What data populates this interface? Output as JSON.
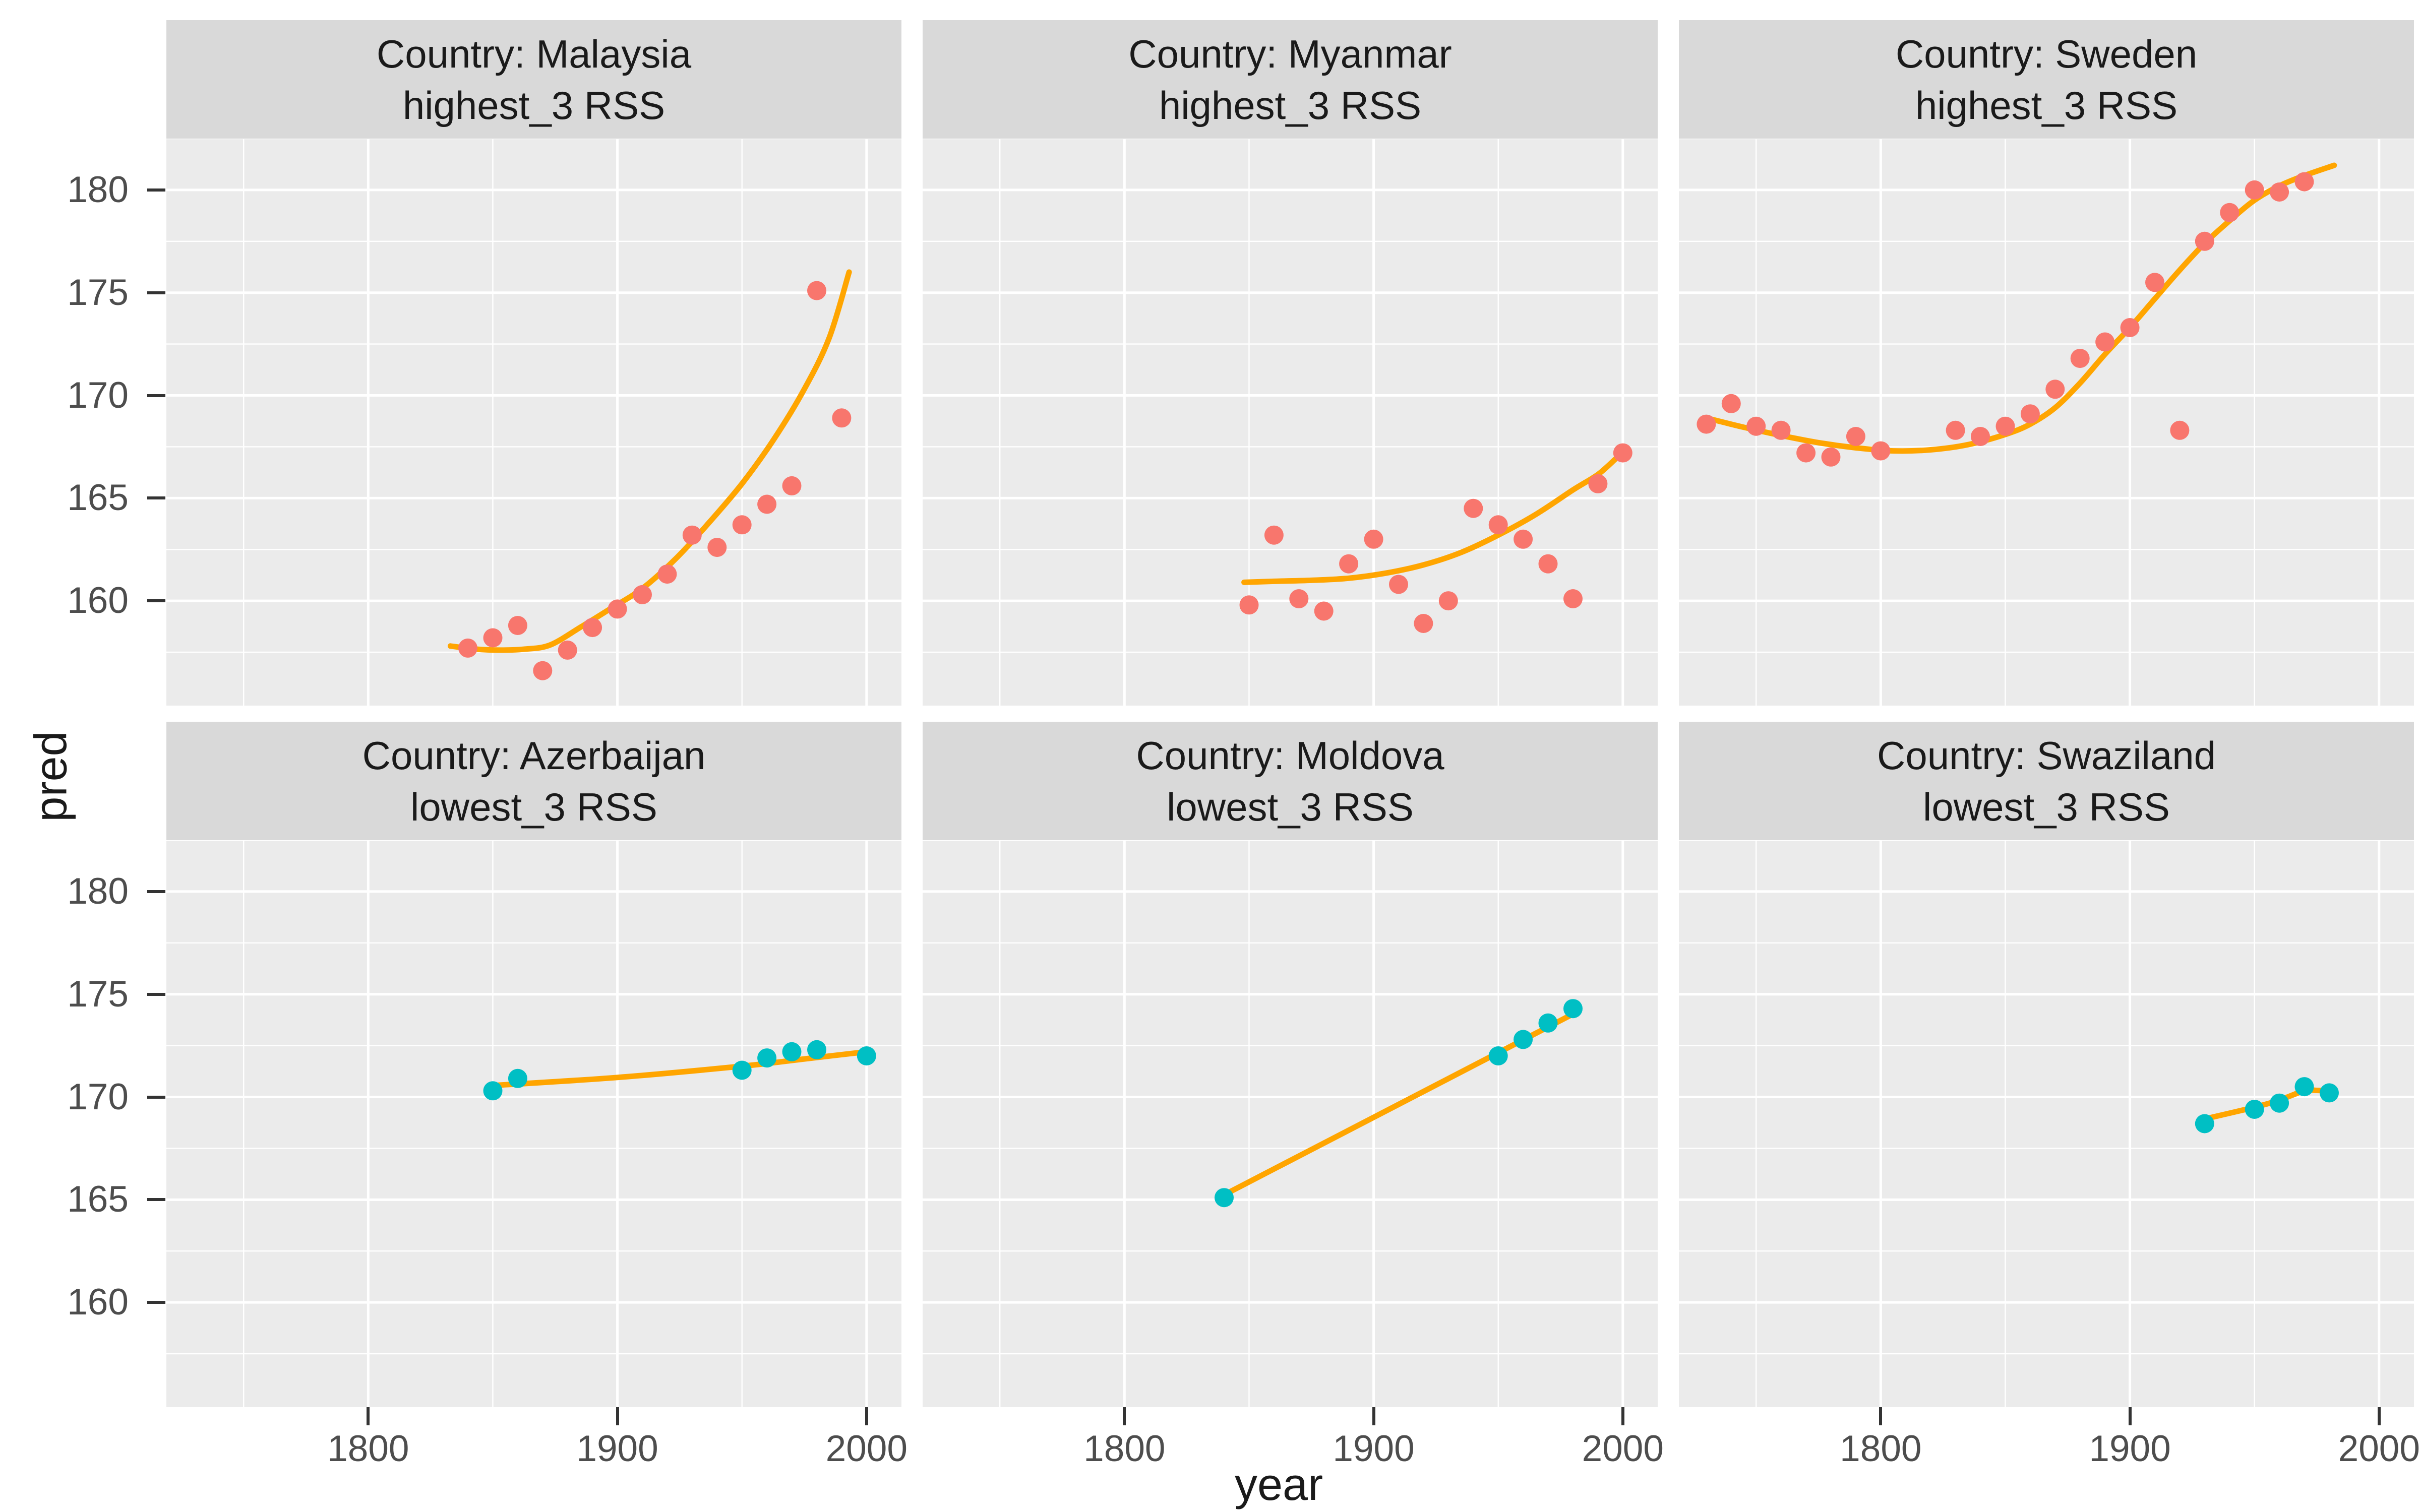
{
  "figure": {
    "background": "#FFFFFF",
    "panel_background": "#EBEBEB",
    "strip_background": "#D9D9D9",
    "gridline_color": "#FFFFFF",
    "tick_label_color": "#4D4D4D",
    "tick_mark_color": "#333333",
    "title_color": "#1A1A1A",
    "smooth_line_color": "#FFA500",
    "highest_point_color": "#F8766D",
    "lowest_point_color": "#00BFC4"
  },
  "axes": {
    "y_title": "pred",
    "x_title": "year",
    "y_tick_labels": [
      "180",
      "175",
      "170",
      "165",
      "160"
    ],
    "x_tick_labels": [
      "1800",
      "1900",
      "2000"
    ]
  },
  "chart_data": {
    "type": "scatter",
    "facet_grid": "2 rows x 3 cols",
    "xlabel": "year",
    "ylabel": "pred",
    "x_domain": [
      1719,
      2014
    ],
    "y_domain": [
      154.9,
      182.5
    ],
    "x_major_breaks": [
      1800,
      1900,
      2000
    ],
    "x_minor_breaks": [
      1750,
      1850,
      1950
    ],
    "y_major_breaks": [
      160,
      165,
      170,
      175,
      180
    ],
    "y_minor_breaks": [
      157.5,
      162.5,
      167.5,
      172.5,
      177.5,
      182.5
    ],
    "grid": "on",
    "legend": "none",
    "facets": [
      {
        "strip_line1": "Country: Malaysia",
        "strip_line2": "highest_3 RSS",
        "group": "highest_3",
        "color": "#F8766D",
        "points": {
          "year": [
            1840,
            1850,
            1860,
            1870,
            1880,
            1890,
            1900,
            1910,
            1920,
            1930,
            1940,
            1950,
            1960,
            1970,
            1980,
            1990
          ],
          "pred": [
            157.7,
            158.2,
            158.8,
            156.6,
            157.6,
            158.7,
            159.6,
            160.3,
            161.3,
            163.2,
            162.6,
            163.7,
            164.7,
            165.6,
            175.1,
            168.9
          ]
        },
        "smooth": [
          [
            1833,
            157.8
          ],
          [
            1843,
            157.65
          ],
          [
            1853,
            157.6
          ],
          [
            1863,
            157.65
          ],
          [
            1873,
            157.85
          ],
          [
            1885,
            158.7
          ],
          [
            1897,
            159.6
          ],
          [
            1910,
            160.6
          ],
          [
            1923,
            162.0
          ],
          [
            1936,
            163.7
          ],
          [
            1950,
            165.7
          ],
          [
            1963,
            167.9
          ],
          [
            1975,
            170.3
          ],
          [
            1985,
            172.8
          ],
          [
            1993,
            176.0
          ]
        ]
      },
      {
        "strip_line1": "Country: Myanmar",
        "strip_line2": "highest_3 RSS",
        "group": "highest_3",
        "color": "#F8766D",
        "points": {
          "year": [
            1850,
            1860,
            1870,
            1880,
            1890,
            1900,
            1910,
            1920,
            1930,
            1940,
            1950,
            1960,
            1970,
            1980,
            1990,
            2000
          ],
          "pred": [
            159.8,
            163.2,
            160.1,
            159.5,
            161.8,
            163.0,
            160.8,
            158.9,
            160.0,
            164.5,
            163.7,
            163.0,
            161.8,
            160.1,
            165.7,
            167.2
          ]
        },
        "smooth": [
          [
            1848,
            160.9
          ],
          [
            1860,
            160.95
          ],
          [
            1875,
            161.0
          ],
          [
            1890,
            161.1
          ],
          [
            1905,
            161.35
          ],
          [
            1920,
            161.75
          ],
          [
            1935,
            162.35
          ],
          [
            1950,
            163.2
          ],
          [
            1965,
            164.2
          ],
          [
            1980,
            165.4
          ],
          [
            1990,
            166.15
          ],
          [
            1997,
            166.9
          ]
        ]
      },
      {
        "strip_line1": "Country: Sweden",
        "strip_line2": "highest_3 RSS",
        "group": "highest_3",
        "color": "#F8766D",
        "points": {
          "year": [
            1730,
            1740,
            1750,
            1760,
            1770,
            1780,
            1790,
            1800,
            1830,
            1840,
            1850,
            1860,
            1870,
            1880,
            1890,
            1900,
            1910,
            1920,
            1930,
            1940,
            1950,
            1960,
            1970
          ],
          "pred": [
            168.6,
            169.6,
            168.5,
            168.3,
            167.2,
            167.0,
            168.0,
            167.3,
            168.3,
            168.0,
            168.5,
            169.1,
            170.3,
            171.8,
            172.6,
            173.3,
            175.5,
            168.3,
            177.5,
            178.9,
            180.0,
            179.9,
            180.4
          ]
        },
        "smooth": [
          [
            1730,
            168.9
          ],
          [
            1745,
            168.45
          ],
          [
            1760,
            168.05
          ],
          [
            1775,
            167.7
          ],
          [
            1790,
            167.45
          ],
          [
            1805,
            167.3
          ],
          [
            1820,
            167.35
          ],
          [
            1835,
            167.6
          ],
          [
            1850,
            168.1
          ],
          [
            1860,
            168.6
          ],
          [
            1870,
            169.4
          ],
          [
            1880,
            170.6
          ],
          [
            1890,
            172.0
          ],
          [
            1900,
            173.3
          ],
          [
            1910,
            174.7
          ],
          [
            1920,
            176.1
          ],
          [
            1930,
            177.4
          ],
          [
            1940,
            178.5
          ],
          [
            1950,
            179.5
          ],
          [
            1960,
            180.2
          ],
          [
            1970,
            180.7
          ],
          [
            1982,
            181.2
          ]
        ]
      },
      {
        "strip_line1": "Country: Azerbaijan",
        "strip_line2": "lowest_3 RSS",
        "group": "lowest_3",
        "color": "#00BFC4",
        "points": {
          "year": [
            1850,
            1860,
            1950,
            1960,
            1970,
            1980,
            2000
          ],
          "pred": [
            170.3,
            170.9,
            171.3,
            171.9,
            172.2,
            172.3,
            172.0
          ]
        },
        "smooth": [
          [
            1849,
            170.55
          ],
          [
            1900,
            170.95
          ],
          [
            1950,
            171.5
          ],
          [
            1975,
            171.85
          ],
          [
            2000,
            172.2
          ]
        ]
      },
      {
        "strip_line1": "Country: Moldova",
        "strip_line2": "lowest_3 RSS",
        "group": "lowest_3",
        "color": "#00BFC4",
        "points": {
          "year": [
            1840,
            1950,
            1960,
            1970,
            1980
          ],
          "pred": [
            165.1,
            172.0,
            172.8,
            173.6,
            174.3
          ]
        },
        "smooth": [
          [
            1841,
            165.3
          ],
          [
            1981,
            174.1
          ]
        ]
      },
      {
        "strip_line1": "Country: Swaziland",
        "strip_line2": "lowest_3 RSS",
        "group": "lowest_3",
        "color": "#00BFC4",
        "points": {
          "year": [
            1930,
            1950,
            1960,
            1970,
            1980
          ],
          "pred": [
            168.7,
            169.4,
            169.7,
            170.5,
            170.2
          ]
        },
        "smooth": [
          [
            1929,
            168.9
          ],
          [
            1950,
            169.5
          ],
          [
            1960,
            169.85
          ],
          [
            1970,
            170.3
          ],
          [
            1975,
            170.32
          ],
          [
            1981,
            170.28
          ]
        ]
      }
    ]
  }
}
